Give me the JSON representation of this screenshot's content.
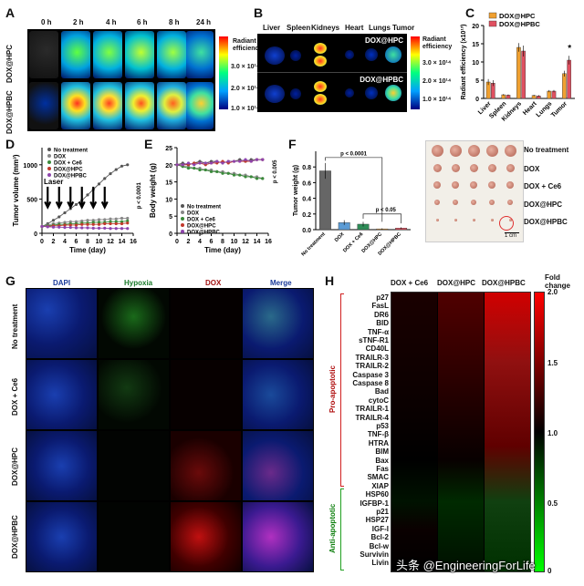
{
  "panel_letters": {
    "a": "A",
    "b": "B",
    "c": "C",
    "d": "D",
    "e": "E",
    "f": "F",
    "g": "G",
    "h": "H"
  },
  "panel_a": {
    "time_labels": [
      "0 h",
      "2 h",
      "4 h",
      "6 h",
      "8 h",
      "24 h"
    ],
    "row_labels": [
      "DOX@HPC",
      "DOX@HPBC"
    ],
    "scale_title": "Radiant efficiency",
    "scale_ticks": [
      "3.0 × 10¹⁴",
      "2.0 × 10¹⁴",
      "1.0 × 10¹⁴"
    ]
  },
  "panel_b": {
    "organ_labels": [
      "Liver",
      "Spleen",
      "Kidneys",
      "Heart",
      "Lungs",
      "Tumor"
    ],
    "image_labels": [
      "DOX@HPC",
      "DOX@HPBC"
    ],
    "scale_title": "Radiant efficiency",
    "scale_ticks": [
      "3.0 × 10¹⁴",
      "2.0 × 10¹⁴",
      "1.0 × 10¹⁴"
    ]
  },
  "panel_f_photo": {
    "row_labels": [
      "No treatment",
      "DOX",
      "DOX + Ce6",
      "DOX@HPC",
      "DOX@HPBC"
    ],
    "scale_bar": "1 cm"
  },
  "panel_g": {
    "column_labels": [
      "DAPI",
      "Hypoxia",
      "DOX",
      "Merge"
    ],
    "row_labels": [
      "No treatment",
      "DOX + Ce6",
      "DOX@HPC",
      "DOX@HPBC"
    ]
  },
  "panel_h": {
    "column_labels": [
      "DOX + Ce6",
      "DOX@HPC",
      "DOX@HPBC"
    ],
    "genes": [
      "p27",
      "FasL",
      "DR6",
      "BID",
      "TNF-α",
      "sTNF-R1",
      "CD40L",
      "TRAILR-3",
      "TRAILR-2",
      "Caspase 3",
      "Caspase 8",
      "Bad",
      "cytoC",
      "TRAILR-1",
      "TRAILR-4",
      "p53",
      "TNF-β",
      "HTRA",
      "BIM",
      "Bax",
      "Fas",
      "SMAC",
      "XIAP",
      "HSP60",
      "IGFBP-1",
      "p21",
      "HSP27",
      "IGF-I",
      "Bcl-2",
      "Bcl-w",
      "Survivin",
      "Livin"
    ],
    "group_labels": [
      "Pro-apoptotic",
      "Anti-apoptotic"
    ],
    "colorbar_title": "Fold change",
    "colorbar_ticks": [
      "2.0",
      "1.5",
      "1.0",
      "0.5",
      "0"
    ]
  },
  "watermark": "头条 @EngineeringForLife",
  "chart_data": [
    {
      "id": "C",
      "type": "bar",
      "categories": [
        "Liver",
        "Spleen",
        "Kidneys",
        "Heart",
        "Lungs",
        "Tumor"
      ],
      "series": [
        {
          "name": "DOX@HPC",
          "color": "#f0a030",
          "values": [
            4.5,
            1.0,
            14.0,
            0.8,
            2.0,
            6.8
          ],
          "errors": [
            0.8,
            0.2,
            1.2,
            0.2,
            0.3,
            0.8
          ]
        },
        {
          "name": "DOX@HPBC",
          "color": "#e05060",
          "values": [
            4.2,
            0.9,
            13.0,
            0.7,
            2.0,
            10.5
          ],
          "errors": [
            0.8,
            0.2,
            1.5,
            0.2,
            0.3,
            1.2
          ]
        }
      ],
      "ylabel": "Radiant efficiency (x10¹³)",
      "ylim": [
        0,
        20
      ],
      "yticks": [
        "0",
        "5",
        "10",
        "15",
        "20"
      ],
      "annotation": "*"
    },
    {
      "id": "D",
      "type": "line",
      "x": [
        0,
        1,
        2,
        3,
        4,
        5,
        6,
        7,
        8,
        9,
        10,
        11,
        12,
        13,
        14,
        15
      ],
      "xticks": [
        "0",
        "2",
        "4",
        "6",
        "8",
        "10",
        "12",
        "14",
        "16"
      ],
      "xlabel": "Time (day)",
      "ylabel": "Tumor volume (mm³)",
      "ylim": [
        0,
        1250
      ],
      "yticks": [
        "0",
        "500",
        "1000"
      ],
      "series": [
        {
          "name": "No treatment",
          "color": "#555555",
          "values": [
            100,
            140,
            190,
            240,
            300,
            360,
            420,
            480,
            560,
            640,
            720,
            800,
            870,
            930,
            980,
            1000
          ]
        },
        {
          "name": "DOX",
          "color": "#888888",
          "values": [
            100,
            120,
            140,
            150,
            160,
            170,
            170,
            180,
            190,
            190,
            200,
            200,
            210,
            210,
            220,
            220
          ]
        },
        {
          "name": "DOX + Ce6",
          "color": "#3a8a3a",
          "values": [
            100,
            110,
            120,
            130,
            130,
            140,
            140,
            150,
            150,
            160,
            160,
            160,
            170,
            170,
            170,
            180
          ]
        },
        {
          "name": "DOX@HPC",
          "color": "#c0392b",
          "values": [
            100,
            100,
            110,
            110,
            120,
            120,
            120,
            130,
            130,
            130,
            130,
            140,
            140,
            140,
            140,
            150
          ]
        },
        {
          "name": "DOX@HPBC",
          "color": "#8e44ad",
          "values": [
            100,
            95,
            90,
            90,
            85,
            85,
            80,
            80,
            80,
            75,
            75,
            75,
            70,
            70,
            70,
            70
          ]
        }
      ],
      "annotations": [
        "Laser",
        "p < 0.0001"
      ]
    },
    {
      "id": "E",
      "type": "line",
      "x": [
        0,
        1,
        2,
        3,
        4,
        5,
        6,
        7,
        8,
        9,
        10,
        11,
        12,
        13,
        14,
        15
      ],
      "xticks": [
        "0",
        "2",
        "4",
        "6",
        "8",
        "10",
        "12",
        "14",
        "16"
      ],
      "xlabel": "Time (day)",
      "ylabel": "Body weight (g)",
      "ylim": [
        0,
        25
      ],
      "yticks": [
        "0",
        "5",
        "10",
        "15",
        "20",
        "25"
      ],
      "series": [
        {
          "name": "No treatment",
          "color": "#555555",
          "values": [
            20,
            20.5,
            20,
            20.5,
            21,
            20.5,
            21,
            21,
            20.5,
            21,
            21,
            21.5,
            21,
            21.5,
            21.5,
            21.5
          ]
        },
        {
          "name": "DOX",
          "color": "#888888",
          "values": [
            20,
            19.5,
            19.5,
            19,
            19,
            18.5,
            18.5,
            18,
            18,
            17.5,
            17.5,
            17,
            17,
            16.5,
            16.5,
            16
          ]
        },
        {
          "name": "DOX + Ce6",
          "color": "#3a8a3a",
          "values": [
            20,
            19.5,
            19,
            19,
            18.5,
            18.5,
            18,
            18,
            17.5,
            17.5,
            17,
            17,
            16.5,
            16.5,
            16,
            16
          ]
        },
        {
          "name": "DOX@HPC",
          "color": "#c0392b",
          "values": [
            20,
            20,
            20,
            20.5,
            20.5,
            20,
            20.5,
            20.5,
            21,
            20.5,
            21,
            21,
            21,
            21,
            21.5,
            21.5
          ]
        },
        {
          "name": "DOX@HPBC",
          "color": "#8e44ad",
          "values": [
            20,
            20,
            20.5,
            20,
            20.5,
            20.5,
            20.5,
            21,
            20.5,
            21,
            21,
            21,
            21.5,
            21,
            21.5,
            21.5
          ]
        }
      ],
      "annotations": [
        "p < 0.005"
      ]
    },
    {
      "id": "F",
      "type": "bar",
      "categories": [
        "No treatment",
        "DOX",
        "DOX + Ce6",
        "DOX@HPC",
        "DOX@HPBC"
      ],
      "values": [
        0.75,
        0.09,
        0.07,
        0.01,
        0.02
      ],
      "errors": [
        0.1,
        0.03,
        0.03,
        0.008,
        0.01
      ],
      "colors": [
        "#666666",
        "#5b9bd5",
        "#2e8b57",
        "#f0a030",
        "#e05060"
      ],
      "ylabel": "Tumor weight (g)",
      "ylim": [
        0,
        1.0
      ],
      "yticks": [
        "0.0",
        "0.2",
        "0.4",
        "0.6",
        "0.8"
      ],
      "annotations": [
        "p < 0.0001",
        "p < 0.05"
      ]
    }
  ]
}
